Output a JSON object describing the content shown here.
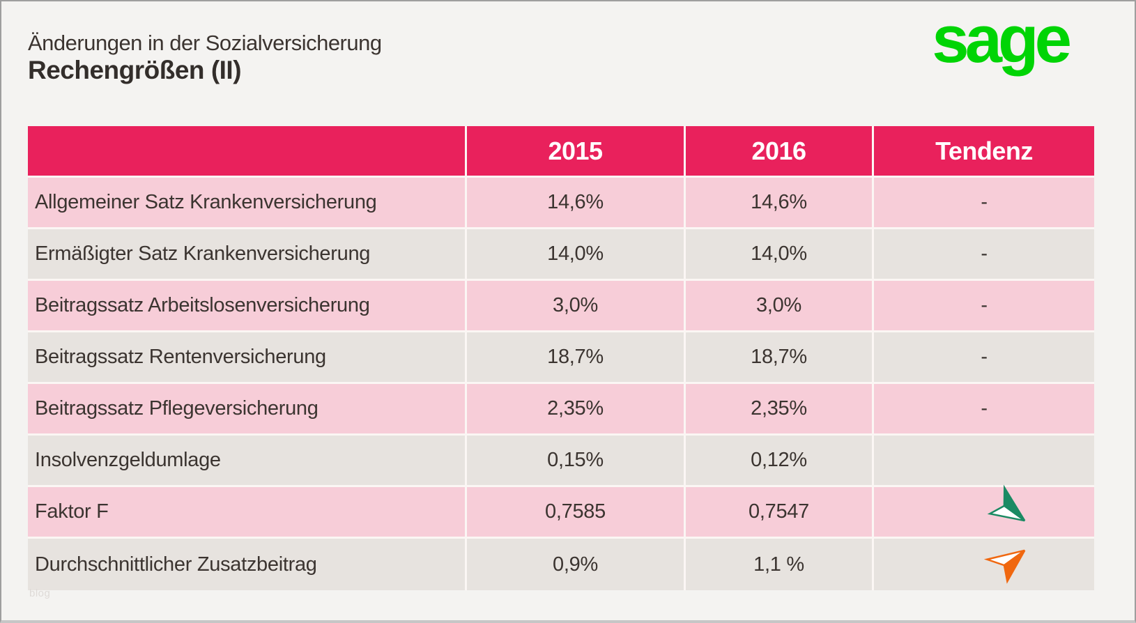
{
  "header": {
    "supertitle": "Änderungen in der Sozialversicherung",
    "title": "Rechengrößen (II)",
    "logo": "sage"
  },
  "watermark": "blog",
  "colors": {
    "header_bg": "#E9215C",
    "row_pink": "#F7CDD8",
    "row_gray": "#E7E3DF",
    "logo_green": "#00D405",
    "trend_up": "#F0670F",
    "trend_down": "#1B8A63"
  },
  "chart_data": {
    "type": "table",
    "columns": [
      "",
      "2015",
      "2016",
      "Tendenz"
    ],
    "rows": [
      {
        "label": "Allgemeiner Satz Krankenversicherung",
        "y2015": "14,6%",
        "y2016": "14,6%",
        "tendenz": "-"
      },
      {
        "label": "Ermäßigter Satz Krankenversicherung",
        "y2015": "14,0%",
        "y2016": "14,0%",
        "tendenz": "-"
      },
      {
        "label": "Beitragssatz Arbeitslosenversicherung",
        "y2015": "3,0%",
        "y2016": "3,0%",
        "tendenz": "-"
      },
      {
        "label": "Beitragssatz Rentenversicherung",
        "y2015": "18,7%",
        "y2016": "18,7%",
        "tendenz": "-"
      },
      {
        "label": "Beitragssatz Pflegeversicherung",
        "y2015": "2,35%",
        "y2016": "2,35%",
        "tendenz": "-"
      },
      {
        "label": "Insolvenzgeldumlage",
        "y2015": "0,15%",
        "y2016": "0,12%",
        "tendenz": ""
      },
      {
        "label": "Faktor F",
        "y2015": "0,7585",
        "y2016": "0,7547",
        "tendenz": "down"
      },
      {
        "label": "Durchschnittlicher Zusatzbeitrag",
        "y2015": "0,9%",
        "y2016": "1,1 %",
        "tendenz": "up"
      }
    ]
  }
}
